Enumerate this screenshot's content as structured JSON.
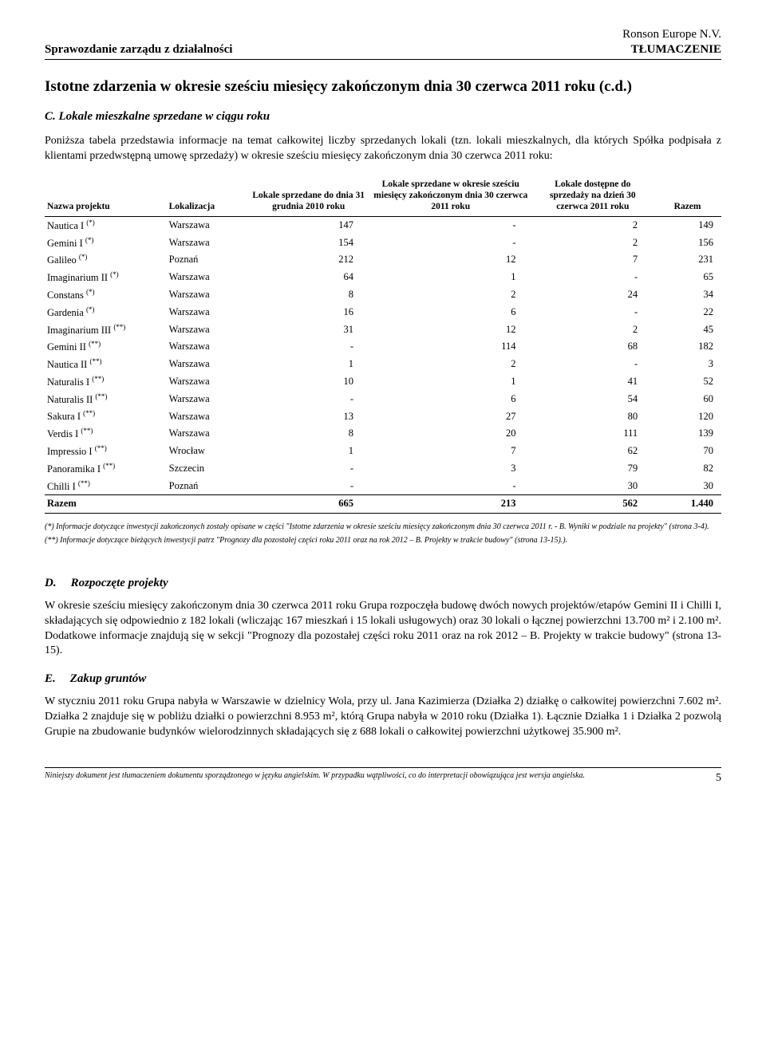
{
  "header": {
    "left": "Sprawozdanie zarządu z działalności",
    "right_line1": "Ronson Europe N.V.",
    "right_line2": "TŁUMACZENIE"
  },
  "title": "Istotne zdarzenia w okresie sześciu miesięcy zakończonym dnia 30 czerwca 2011 roku (c.d.)",
  "section_c": {
    "heading": "C. Lokale mieszkalne sprzedane w ciągu roku",
    "para": "Poniższa tabela przedstawia informacje na temat całkowitej liczby sprzedanych lokali (tzn. lokali mieszkalnych, dla których Spółka podpisała z klientami przedwstępną umowę sprzedaży) w okresie sześciu miesięcy zakończonym dnia 30 czerwca 2011 roku:"
  },
  "table": {
    "columns": {
      "c1": "Nazwa projektu",
      "c2": "Lokalizacja",
      "c3": "Lokale sprzedane do dnia 31 grudnia 2010 roku",
      "c4": "Lokale sprzedane w okresie sześciu miesięcy zakończonym dnia 30 czerwca 2011 roku",
      "c5": "Lokale dostępne do sprzedaży na dzień 30 czerwca 2011 roku",
      "c6": "Razem"
    },
    "rows": [
      {
        "name": "Nautica I",
        "sup": "(*)",
        "loc": "Warszawa",
        "a": "147",
        "b": "-",
        "c": "2",
        "d": "149"
      },
      {
        "name": "Gemini I",
        "sup": "(*)",
        "loc": "Warszawa",
        "a": "154",
        "b": "-",
        "c": "2",
        "d": "156"
      },
      {
        "name": "Galileo",
        "sup": "(*)",
        "loc": "Poznań",
        "a": "212",
        "b": "12",
        "c": "7",
        "d": "231"
      },
      {
        "name": "Imaginarium II",
        "sup": "(*)",
        "loc": "Warszawa",
        "a": "64",
        "b": "1",
        "c": "-",
        "d": "65"
      },
      {
        "name": "Constans",
        "sup": "(*)",
        "loc": "Warszawa",
        "a": "8",
        "b": "2",
        "c": "24",
        "d": "34"
      },
      {
        "name": "Gardenia",
        "sup": "(*)",
        "loc": "Warszawa",
        "a": "16",
        "b": "6",
        "c": "-",
        "d": "22"
      },
      {
        "name": "Imaginarium III",
        "sup": "(**)",
        "loc": "Warszawa",
        "a": "31",
        "b": "12",
        "c": "2",
        "d": "45"
      },
      {
        "name": "Gemini II",
        "sup": "(**)",
        "loc": "Warszawa",
        "a": "-",
        "b": "114",
        "c": "68",
        "d": "182"
      },
      {
        "name": "Nautica II",
        "sup": "(**)",
        "loc": "Warszawa",
        "a": "1",
        "b": "2",
        "c": "-",
        "d": "3"
      },
      {
        "name": "Naturalis I",
        "sup": "(**)",
        "loc": "Warszawa",
        "a": "10",
        "b": "1",
        "c": "41",
        "d": "52"
      },
      {
        "name": "Naturalis II",
        "sup": "(**)",
        "loc": "Warszawa",
        "a": "-",
        "b": "6",
        "c": "54",
        "d": "60"
      },
      {
        "name": "Sakura I",
        "sup": "(**)",
        "loc": "Warszawa",
        "a": "13",
        "b": "27",
        "c": "80",
        "d": "120"
      },
      {
        "name": "Verdis I",
        "sup": "(**)",
        "loc": "Warszawa",
        "a": "8",
        "b": "20",
        "c": "111",
        "d": "139"
      },
      {
        "name": "Impressio I",
        "sup": "(**)",
        "loc": "Wrocław",
        "a": "1",
        "b": "7",
        "c": "62",
        "d": "70"
      },
      {
        "name": "Panoramika I",
        "sup": "(**)",
        "loc": "Szczecin",
        "a": "-",
        "b": "3",
        "c": "79",
        "d": "82"
      },
      {
        "name": "Chilli I",
        "sup": "(**)",
        "loc": "Poznań",
        "a": "-",
        "b": "-",
        "c": "30",
        "d": "30"
      }
    ],
    "total": {
      "label": "Razem",
      "a": "665",
      "b": "213",
      "c": "562",
      "d": "1.440"
    }
  },
  "footnotes": {
    "f1": "(*)   Informacje dotyczące inwestycji zakończonych zostały opisane w części \"Istotne zdarzenia w okresie sześciu miesięcy zakończonym dnia 30 czerwca 2011 r. - B. Wyniki w podziale na projekty\" (strona 3-4).",
    "f2": "(**) Informacje dotyczące bieżących inwestycji patrz \"Prognozy dla pozostałej części roku 2011 oraz na rok 2012 – B. Projekty w trakcie budowy\" (strona 13-15).)."
  },
  "section_d": {
    "letter": "D.",
    "title": "Rozpoczęte projekty",
    "para": "W okresie sześciu miesięcy zakończonym dnia 30 czerwca 2011 roku Grupa rozpoczęła budowę dwóch nowych projektów/etapów Gemini II i Chilli I, składających się odpowiednio z 182 lokali (wliczając 167 mieszkań i 15 lokali usługowych) oraz 30 lokali o łącznej powierzchni  13.700 m² i 2.100 m². Dodatkowe informacje znajdują się w sekcji \"Prognozy dla pozostałej części roku 2011 oraz na rok 2012 – B. Projekty w trakcie budowy\" (strona 13-15)."
  },
  "section_e": {
    "letter": "E.",
    "title": "Zakup gruntów",
    "para": "W styczniu 2011 roku Grupa nabyła w Warszawie w dzielnicy Wola, przy ul. Jana Kazimierza (Działka 2) działkę o całkowitej powierzchni 7.602 m². Działka 2 znajduje się w pobliżu działki o powierzchni 8.953 m², którą Grupa nabyła w 2010 roku (Działka 1). Łącznie Działka 1 i Działka 2 pozwolą Grupie na zbudowanie budynków wielorodzinnych składających się z 688 lokali o całkowitej powierzchni użytkowej 35.900 m²."
  },
  "footer": {
    "text": "Niniejszy dokument jest tłumaczeniem dokumentu sporządzonego w języku angielskim. W przypadku wątpliwości, co do interpretacji obowiązująca jest wersja angielska.",
    "page": "5"
  }
}
